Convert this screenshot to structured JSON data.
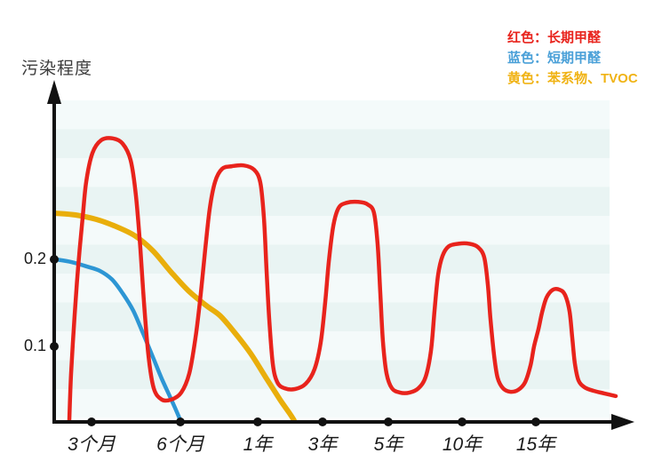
{
  "legend": {
    "items": [
      {
        "label": "红色：长期甲醛",
        "color": "#e8231c"
      },
      {
        "label": "蓝色：短期甲醛",
        "color": "#4aa0d8"
      },
      {
        "label": "黄色：苯系物、TVOC",
        "color": "#f0b315"
      }
    ]
  },
  "chart_data": {
    "type": "line",
    "ylabel": "污染程度",
    "xlabel": "",
    "axis_color": "#111111",
    "ylim": [
      0,
      0.39
    ],
    "grid": "horizontal striped background",
    "legend_position": "top-right",
    "plot": {
      "stripe_light": "#f4fafa",
      "stripe_dark": "#e9f4f3"
    },
    "y_ticks": [
      {
        "label": "0.2",
        "value": 0.2
      },
      {
        "label": "0.1",
        "value": 0.1
      }
    ],
    "x_ticks": [
      {
        "label": "3个月",
        "dx": 40
      },
      {
        "label": "6个月",
        "dx": 140
      },
      {
        "label": "1年",
        "dx": 227
      },
      {
        "label": "3年",
        "dx": 300
      },
      {
        "label": "5年",
        "dx": 374
      },
      {
        "label": "10年",
        "dx": 457
      },
      {
        "label": "15年",
        "dx": 540
      }
    ],
    "series": [
      {
        "id": "long-term-formaldehyde",
        "name": "长期甲醛",
        "color": "#e8231c",
        "width": 4.5,
        "points": [
          [
            15,
            0.015
          ],
          [
            17,
            0.069
          ],
          [
            21,
            0.136
          ],
          [
            25,
            0.192
          ],
          [
            30,
            0.248
          ],
          [
            34,
            0.289
          ],
          [
            41,
            0.322
          ],
          [
            51,
            0.337
          ],
          [
            64,
            0.339
          ],
          [
            75,
            0.333
          ],
          [
            84,
            0.314
          ],
          [
            90,
            0.273
          ],
          [
            95,
            0.212
          ],
          [
            99,
            0.151
          ],
          [
            104,
            0.09
          ],
          [
            110,
            0.052
          ],
          [
            119,
            0.039
          ],
          [
            130,
            0.039
          ],
          [
            141,
            0.047
          ],
          [
            150,
            0.069
          ],
          [
            157,
            0.11
          ],
          [
            163,
            0.161
          ],
          [
            168,
            0.212
          ],
          [
            173,
            0.258
          ],
          [
            179,
            0.289
          ],
          [
            187,
            0.304
          ],
          [
            198,
            0.307
          ],
          [
            211,
            0.308
          ],
          [
            223,
            0.303
          ],
          [
            230,
            0.288
          ],
          [
            234,
            0.248
          ],
          [
            237,
            0.187
          ],
          [
            240,
            0.131
          ],
          [
            244,
            0.08
          ],
          [
            249,
            0.059
          ],
          [
            257,
            0.052
          ],
          [
            269,
            0.051
          ],
          [
            281,
            0.057
          ],
          [
            291,
            0.074
          ],
          [
            298,
            0.105
          ],
          [
            303,
            0.151
          ],
          [
            307,
            0.197
          ],
          [
            312,
            0.238
          ],
          [
            318,
            0.259
          ],
          [
            327,
            0.265
          ],
          [
            340,
            0.266
          ],
          [
            351,
            0.263
          ],
          [
            358,
            0.253
          ],
          [
            362,
            0.217
          ],
          [
            365,
            0.161
          ],
          [
            368,
            0.105
          ],
          [
            372,
            0.069
          ],
          [
            378,
            0.052
          ],
          [
            387,
            0.047
          ],
          [
            398,
            0.047
          ],
          [
            408,
            0.052
          ],
          [
            416,
            0.065
          ],
          [
            422,
            0.095
          ],
          [
            426,
            0.141
          ],
          [
            430,
            0.182
          ],
          [
            435,
            0.204
          ],
          [
            442,
            0.215
          ],
          [
            453,
            0.218
          ],
          [
            465,
            0.218
          ],
          [
            475,
            0.214
          ],
          [
            482,
            0.202
          ],
          [
            486,
            0.171
          ],
          [
            489,
            0.131
          ],
          [
            493,
            0.09
          ],
          [
            497,
            0.064
          ],
          [
            503,
            0.052
          ],
          [
            511,
            0.048
          ],
          [
            520,
            0.05
          ],
          [
            528,
            0.059
          ],
          [
            534,
            0.078
          ],
          [
            538,
            0.1
          ],
          [
            543,
            0.12
          ],
          [
            547,
            0.139
          ],
          [
            552,
            0.156
          ],
          [
            559,
            0.165
          ],
          [
            567,
            0.165
          ],
          [
            573,
            0.159
          ],
          [
            578,
            0.14
          ],
          [
            581,
            0.11
          ],
          [
            584,
            0.08
          ],
          [
            588,
            0.061
          ],
          [
            595,
            0.053
          ],
          [
            605,
            0.049
          ],
          [
            617,
            0.046
          ],
          [
            630,
            0.043
          ]
        ]
      },
      {
        "id": "short-term-formaldehyde",
        "name": "短期甲醛",
        "color": "#2d96d4",
        "width": 4.5,
        "points": [
          [
            0,
            0.2
          ],
          [
            17,
            0.197
          ],
          [
            34,
            0.192
          ],
          [
            49,
            0.187
          ],
          [
            63,
            0.177
          ],
          [
            75,
            0.161
          ],
          [
            87,
            0.141
          ],
          [
            98,
            0.115
          ],
          [
            109,
            0.088
          ],
          [
            119,
            0.063
          ],
          [
            128,
            0.043
          ],
          [
            135,
            0.027
          ],
          [
            140,
            0.015
          ]
        ]
      },
      {
        "id": "benzene-tvoc",
        "name": "苯系物、TVOC",
        "color": "#e9ae0b",
        "width": 6,
        "points": [
          [
            0,
            0.253
          ],
          [
            22,
            0.251
          ],
          [
            45,
            0.246
          ],
          [
            67,
            0.238
          ],
          [
            89,
            0.227
          ],
          [
            109,
            0.21
          ],
          [
            129,
            0.186
          ],
          [
            149,
            0.164
          ],
          [
            169,
            0.147
          ],
          [
            185,
            0.135
          ],
          [
            201,
            0.116
          ],
          [
            219,
            0.092
          ],
          [
            237,
            0.063
          ],
          [
            252,
            0.039
          ],
          [
            263,
            0.023
          ],
          [
            268,
            0.015
          ]
        ]
      }
    ]
  }
}
